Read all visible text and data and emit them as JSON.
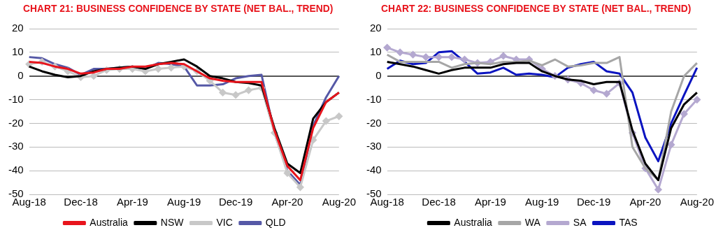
{
  "chart_data": [
    {
      "type": "line",
      "title": "CHART 21: BUSINESS CONFIDENCE BY STATE (NET BAL., TREND)",
      "categories": [
        "Aug-18",
        null,
        null,
        null,
        "Dec-18",
        null,
        null,
        null,
        "Apr-19",
        null,
        null,
        null,
        "Aug-19",
        null,
        null,
        null,
        "Dec-19",
        null,
        null,
        null,
        "Apr-20",
        null,
        null,
        null,
        "Aug-20"
      ],
      "series": [
        {
          "name": "Australia",
          "color": "#e8141c",
          "values": [
            6,
            5.5,
            4,
            3,
            1,
            1.5,
            3,
            3,
            4,
            4,
            5,
            5.5,
            5,
            2,
            -1,
            -2,
            -2.5,
            -2.5,
            -2.5,
            -23,
            -38,
            -44,
            -22,
            -11,
            -7
          ]
        },
        {
          "name": "NSW",
          "color": "#000000",
          "values": [
            4,
            2,
            0.5,
            -0.5,
            0,
            2,
            3,
            3.5,
            4,
            3,
            5,
            6,
            7,
            4,
            0,
            -1,
            -2.5,
            -3,
            -4,
            -22,
            -37,
            -41,
            -18,
            -11,
            -7
          ]
        },
        {
          "name": "VIC",
          "color": "#c8c8c8",
          "marker": "diamond",
          "values": [
            5,
            6,
            4,
            2,
            -0.5,
            0,
            2.5,
            3,
            3,
            2,
            3,
            3.5,
            4,
            2,
            -2,
            -7,
            -8,
            -6,
            -5,
            -24,
            -41,
            -47,
            -27,
            -19,
            -17
          ]
        },
        {
          "name": "QLD",
          "color": "#5558a6",
          "values": [
            8,
            7.5,
            5,
            3.5,
            0.5,
            3,
            3,
            3.5,
            4,
            3,
            5.5,
            5,
            4,
            -4,
            -4,
            -3.5,
            -1,
            0,
            0.5,
            -24,
            -40,
            -46,
            -21,
            -9,
            0
          ]
        }
      ],
      "ylim": [
        -50,
        20
      ],
      "yticks": [
        -50,
        -40,
        -30,
        -20,
        -10,
        0,
        10,
        20
      ],
      "grid": "y",
      "legend": "bottom"
    },
    {
      "type": "line",
      "title": "CHART 22: BUSINESS CONFIDENCE BY STATE (NET BAL., TREND)",
      "categories": [
        "Aug-18",
        null,
        null,
        null,
        "Dec-18",
        null,
        null,
        null,
        "Apr-19",
        null,
        null,
        null,
        "Aug-19",
        null,
        null,
        null,
        "Dec-19",
        null,
        null,
        null,
        "Apr-20",
        null,
        null,
        null,
        "Aug-20"
      ],
      "series": [
        {
          "name": "Australia",
          "color": "#000000",
          "values": [
            6,
            5,
            4,
            2.5,
            1,
            2.5,
            3.5,
            3.5,
            3.5,
            5,
            5.5,
            5.5,
            2,
            0,
            -1.5,
            -2,
            -3.5,
            -2.5,
            -2.5,
            -23,
            -37,
            -44,
            -22,
            -12,
            -7
          ]
        },
        {
          "name": "WA",
          "color": "#a6a6a6",
          "values": [
            9,
            6,
            6,
            6,
            6,
            3.5,
            5,
            5.5,
            5,
            6,
            6,
            6.5,
            4.5,
            7,
            4,
            4.5,
            5.5,
            5.5,
            8,
            -30,
            -39,
            -44,
            -15,
            0,
            5.5
          ]
        },
        {
          "name": "SA",
          "color": "#b4a8d0",
          "marker": "diamond",
          "values": [
            12,
            10,
            9,
            8,
            8,
            8,
            7,
            5.5,
            6,
            8.5,
            7,
            7,
            3,
            0,
            -1.5,
            -3,
            -6,
            -7.5,
            -3,
            -24,
            -39,
            -48,
            -29,
            -16,
            -10
          ]
        },
        {
          "name": "TAS",
          "color": "#0b14c0",
          "values": [
            3,
            6.5,
            5,
            5.5,
            10,
            10.5,
            6,
            1,
            1.5,
            3.5,
            0.5,
            1,
            0.5,
            -0.5,
            3.5,
            5,
            6,
            2,
            1,
            -7,
            -26,
            -36,
            -20,
            -8,
            3.5
          ]
        }
      ],
      "ylim": [
        -50,
        20
      ],
      "yticks": [
        -50,
        -40,
        -30,
        -20,
        -10,
        0,
        10,
        20
      ],
      "grid": "y",
      "legend": "bottom"
    }
  ]
}
